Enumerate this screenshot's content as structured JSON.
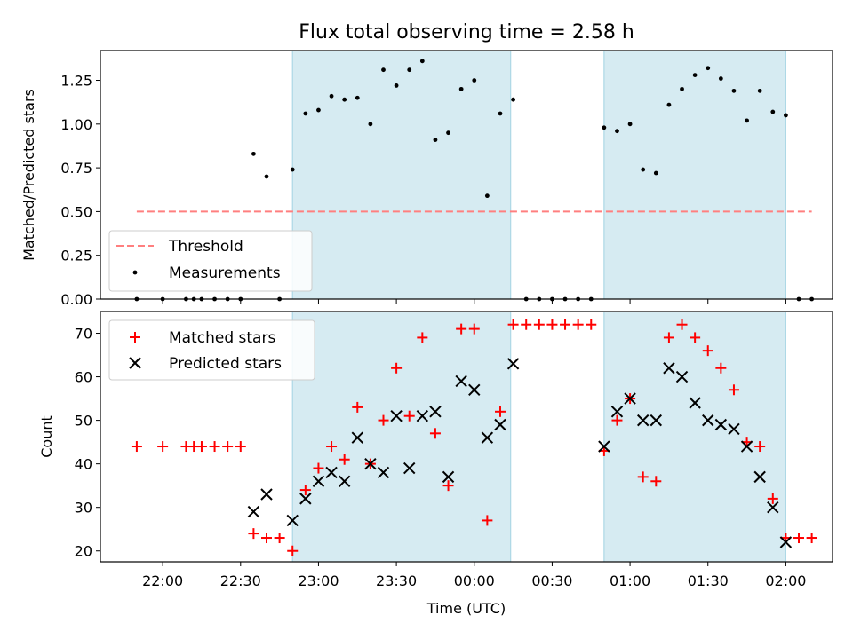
{
  "figure": {
    "title": "Flux total observing time = 2.58 h"
  },
  "colors": {
    "shade": "#add8e6",
    "threshold": "#ff7f7f",
    "matched": "#ff0000",
    "predicted": "#000000",
    "measurement": "#000000"
  },
  "chart_data": [
    {
      "type": "scatter",
      "panel": "top",
      "ylabel": "Matched/Predicted stars",
      "xlabel": "",
      "xlim": [
        "21:36",
        "02:18"
      ],
      "ylim": [
        0.0,
        1.42
      ],
      "yticks": [
        "0.00",
        "0.25",
        "0.50",
        "0.75",
        "1.00",
        "1.25"
      ],
      "xticks": [
        "22:00",
        "22:30",
        "23:00",
        "23:30",
        "00:00",
        "00:30",
        "01:00",
        "01:30",
        "02:00"
      ],
      "shaded_intervals": [
        [
          "22:50",
          "00:14"
        ],
        [
          "00:50",
          "02:00"
        ]
      ],
      "threshold": {
        "name": "Threshold",
        "y": 0.5,
        "x_range": [
          "21:50",
          "02:10"
        ]
      },
      "legend": {
        "location": "lower left",
        "entries": [
          "Threshold",
          "Measurements"
        ]
      },
      "series": [
        {
          "name": "Measurements",
          "points": [
            [
              "21:50",
              0.0
            ],
            [
              "22:00",
              0.0
            ],
            [
              "22:09",
              0.0
            ],
            [
              "22:12",
              0.0
            ],
            [
              "22:15",
              0.0
            ],
            [
              "22:20",
              0.0
            ],
            [
              "22:25",
              0.0
            ],
            [
              "22:30",
              0.0
            ],
            [
              "22:35",
              0.83
            ],
            [
              "22:40",
              0.7
            ],
            [
              "22:45",
              0.0
            ],
            [
              "22:50",
              0.74
            ],
            [
              "22:55",
              1.06
            ],
            [
              "23:00",
              1.08
            ],
            [
              "23:05",
              1.16
            ],
            [
              "23:10",
              1.14
            ],
            [
              "23:15",
              1.15
            ],
            [
              "23:20",
              1.0
            ],
            [
              "23:25",
              1.31
            ],
            [
              "23:30",
              1.22
            ],
            [
              "23:35",
              1.31
            ],
            [
              "23:40",
              1.36
            ],
            [
              "23:45",
              0.91
            ],
            [
              "23:50",
              0.95
            ],
            [
              "23:55",
              1.2
            ],
            [
              "00:00",
              1.25
            ],
            [
              "00:05",
              0.59
            ],
            [
              "00:10",
              1.06
            ],
            [
              "00:15",
              1.14
            ],
            [
              "00:20",
              0.0
            ],
            [
              "00:25",
              0.0
            ],
            [
              "00:30",
              0.0
            ],
            [
              "00:35",
              0.0
            ],
            [
              "00:40",
              0.0
            ],
            [
              "00:45",
              0.0
            ],
            [
              "00:50",
              0.98
            ],
            [
              "00:55",
              0.96
            ],
            [
              "01:00",
              1.0
            ],
            [
              "01:05",
              0.74
            ],
            [
              "01:10",
              0.72
            ],
            [
              "01:15",
              1.11
            ],
            [
              "01:20",
              1.2
            ],
            [
              "01:25",
              1.28
            ],
            [
              "01:30",
              1.32
            ],
            [
              "01:35",
              1.26
            ],
            [
              "01:40",
              1.19
            ],
            [
              "01:45",
              1.02
            ],
            [
              "01:50",
              1.19
            ],
            [
              "01:55",
              1.07
            ],
            [
              "02:00",
              1.05
            ],
            [
              "02:05",
              0.0
            ],
            [
              "02:10",
              0.0
            ]
          ]
        }
      ]
    },
    {
      "type": "scatter",
      "panel": "bottom",
      "ylabel": "Count",
      "xlabel": "Time (UTC)",
      "xlim": [
        "21:36",
        "02:18"
      ],
      "ylim": [
        17.5,
        75.0
      ],
      "yticks": [
        "20",
        "30",
        "40",
        "50",
        "60",
        "70"
      ],
      "xticks": [
        "22:00",
        "22:30",
        "23:00",
        "23:30",
        "00:00",
        "00:30",
        "01:00",
        "01:30",
        "02:00"
      ],
      "shaded_intervals": [
        [
          "22:50",
          "00:14"
        ],
        [
          "00:50",
          "02:00"
        ]
      ],
      "legend": {
        "location": "upper left",
        "entries": [
          "Matched stars",
          "Predicted stars"
        ]
      },
      "series": [
        {
          "name": "Matched stars",
          "marker": "+",
          "points": [
            [
              "21:50",
              44
            ],
            [
              "22:00",
              44
            ],
            [
              "22:09",
              44
            ],
            [
              "22:12",
              44
            ],
            [
              "22:15",
              44
            ],
            [
              "22:20",
              44
            ],
            [
              "22:25",
              44
            ],
            [
              "22:30",
              44
            ],
            [
              "22:35",
              24
            ],
            [
              "22:40",
              23
            ],
            [
              "22:45",
              23
            ],
            [
              "22:50",
              20
            ],
            [
              "22:55",
              34
            ],
            [
              "23:00",
              39
            ],
            [
              "23:05",
              44
            ],
            [
              "23:10",
              41
            ],
            [
              "23:15",
              53
            ],
            [
              "23:20",
              40
            ],
            [
              "23:25",
              50
            ],
            [
              "23:30",
              62
            ],
            [
              "23:35",
              51
            ],
            [
              "23:40",
              69
            ],
            [
              "23:45",
              47
            ],
            [
              "23:50",
              35
            ],
            [
              "23:55",
              71
            ],
            [
              "00:00",
              71
            ],
            [
              "00:05",
              27
            ],
            [
              "00:10",
              52
            ],
            [
              "00:15",
              72
            ],
            [
              "00:20",
              72
            ],
            [
              "00:25",
              72
            ],
            [
              "00:30",
              72
            ],
            [
              "00:35",
              72
            ],
            [
              "00:40",
              72
            ],
            [
              "00:45",
              72
            ],
            [
              "00:50",
              43
            ],
            [
              "00:55",
              50
            ],
            [
              "01:00",
              55
            ],
            [
              "01:05",
              37
            ],
            [
              "01:10",
              36
            ],
            [
              "01:15",
              69
            ],
            [
              "01:20",
              72
            ],
            [
              "01:25",
              69
            ],
            [
              "01:30",
              66
            ],
            [
              "01:35",
              62
            ],
            [
              "01:40",
              57
            ],
            [
              "01:45",
              45
            ],
            [
              "01:50",
              44
            ],
            [
              "01:55",
              32
            ],
            [
              "02:00",
              23
            ],
            [
              "02:05",
              23
            ],
            [
              "02:10",
              23
            ]
          ]
        },
        {
          "name": "Predicted stars",
          "marker": "x",
          "points": [
            [
              "22:35",
              29
            ],
            [
              "22:40",
              33
            ],
            [
              "22:50",
              27
            ],
            [
              "22:55",
              32
            ],
            [
              "23:00",
              36
            ],
            [
              "23:05",
              38
            ],
            [
              "23:10",
              36
            ],
            [
              "23:15",
              46
            ],
            [
              "23:20",
              40
            ],
            [
              "23:25",
              38
            ],
            [
              "23:30",
              51
            ],
            [
              "23:35",
              39
            ],
            [
              "23:40",
              51
            ],
            [
              "23:45",
              52
            ],
            [
              "23:50",
              37
            ],
            [
              "23:55",
              59
            ],
            [
              "00:00",
              57
            ],
            [
              "00:05",
              46
            ],
            [
              "00:10",
              49
            ],
            [
              "00:15",
              63
            ],
            [
              "00:50",
              44
            ],
            [
              "00:55",
              52
            ],
            [
              "01:00",
              55
            ],
            [
              "01:05",
              50
            ],
            [
              "01:10",
              50
            ],
            [
              "01:15",
              62
            ],
            [
              "01:20",
              60
            ],
            [
              "01:25",
              54
            ],
            [
              "01:30",
              50
            ],
            [
              "01:35",
              49
            ],
            [
              "01:40",
              48
            ],
            [
              "01:45",
              44
            ],
            [
              "01:50",
              37
            ],
            [
              "01:55",
              30
            ],
            [
              "02:00",
              22
            ]
          ]
        }
      ]
    }
  ]
}
